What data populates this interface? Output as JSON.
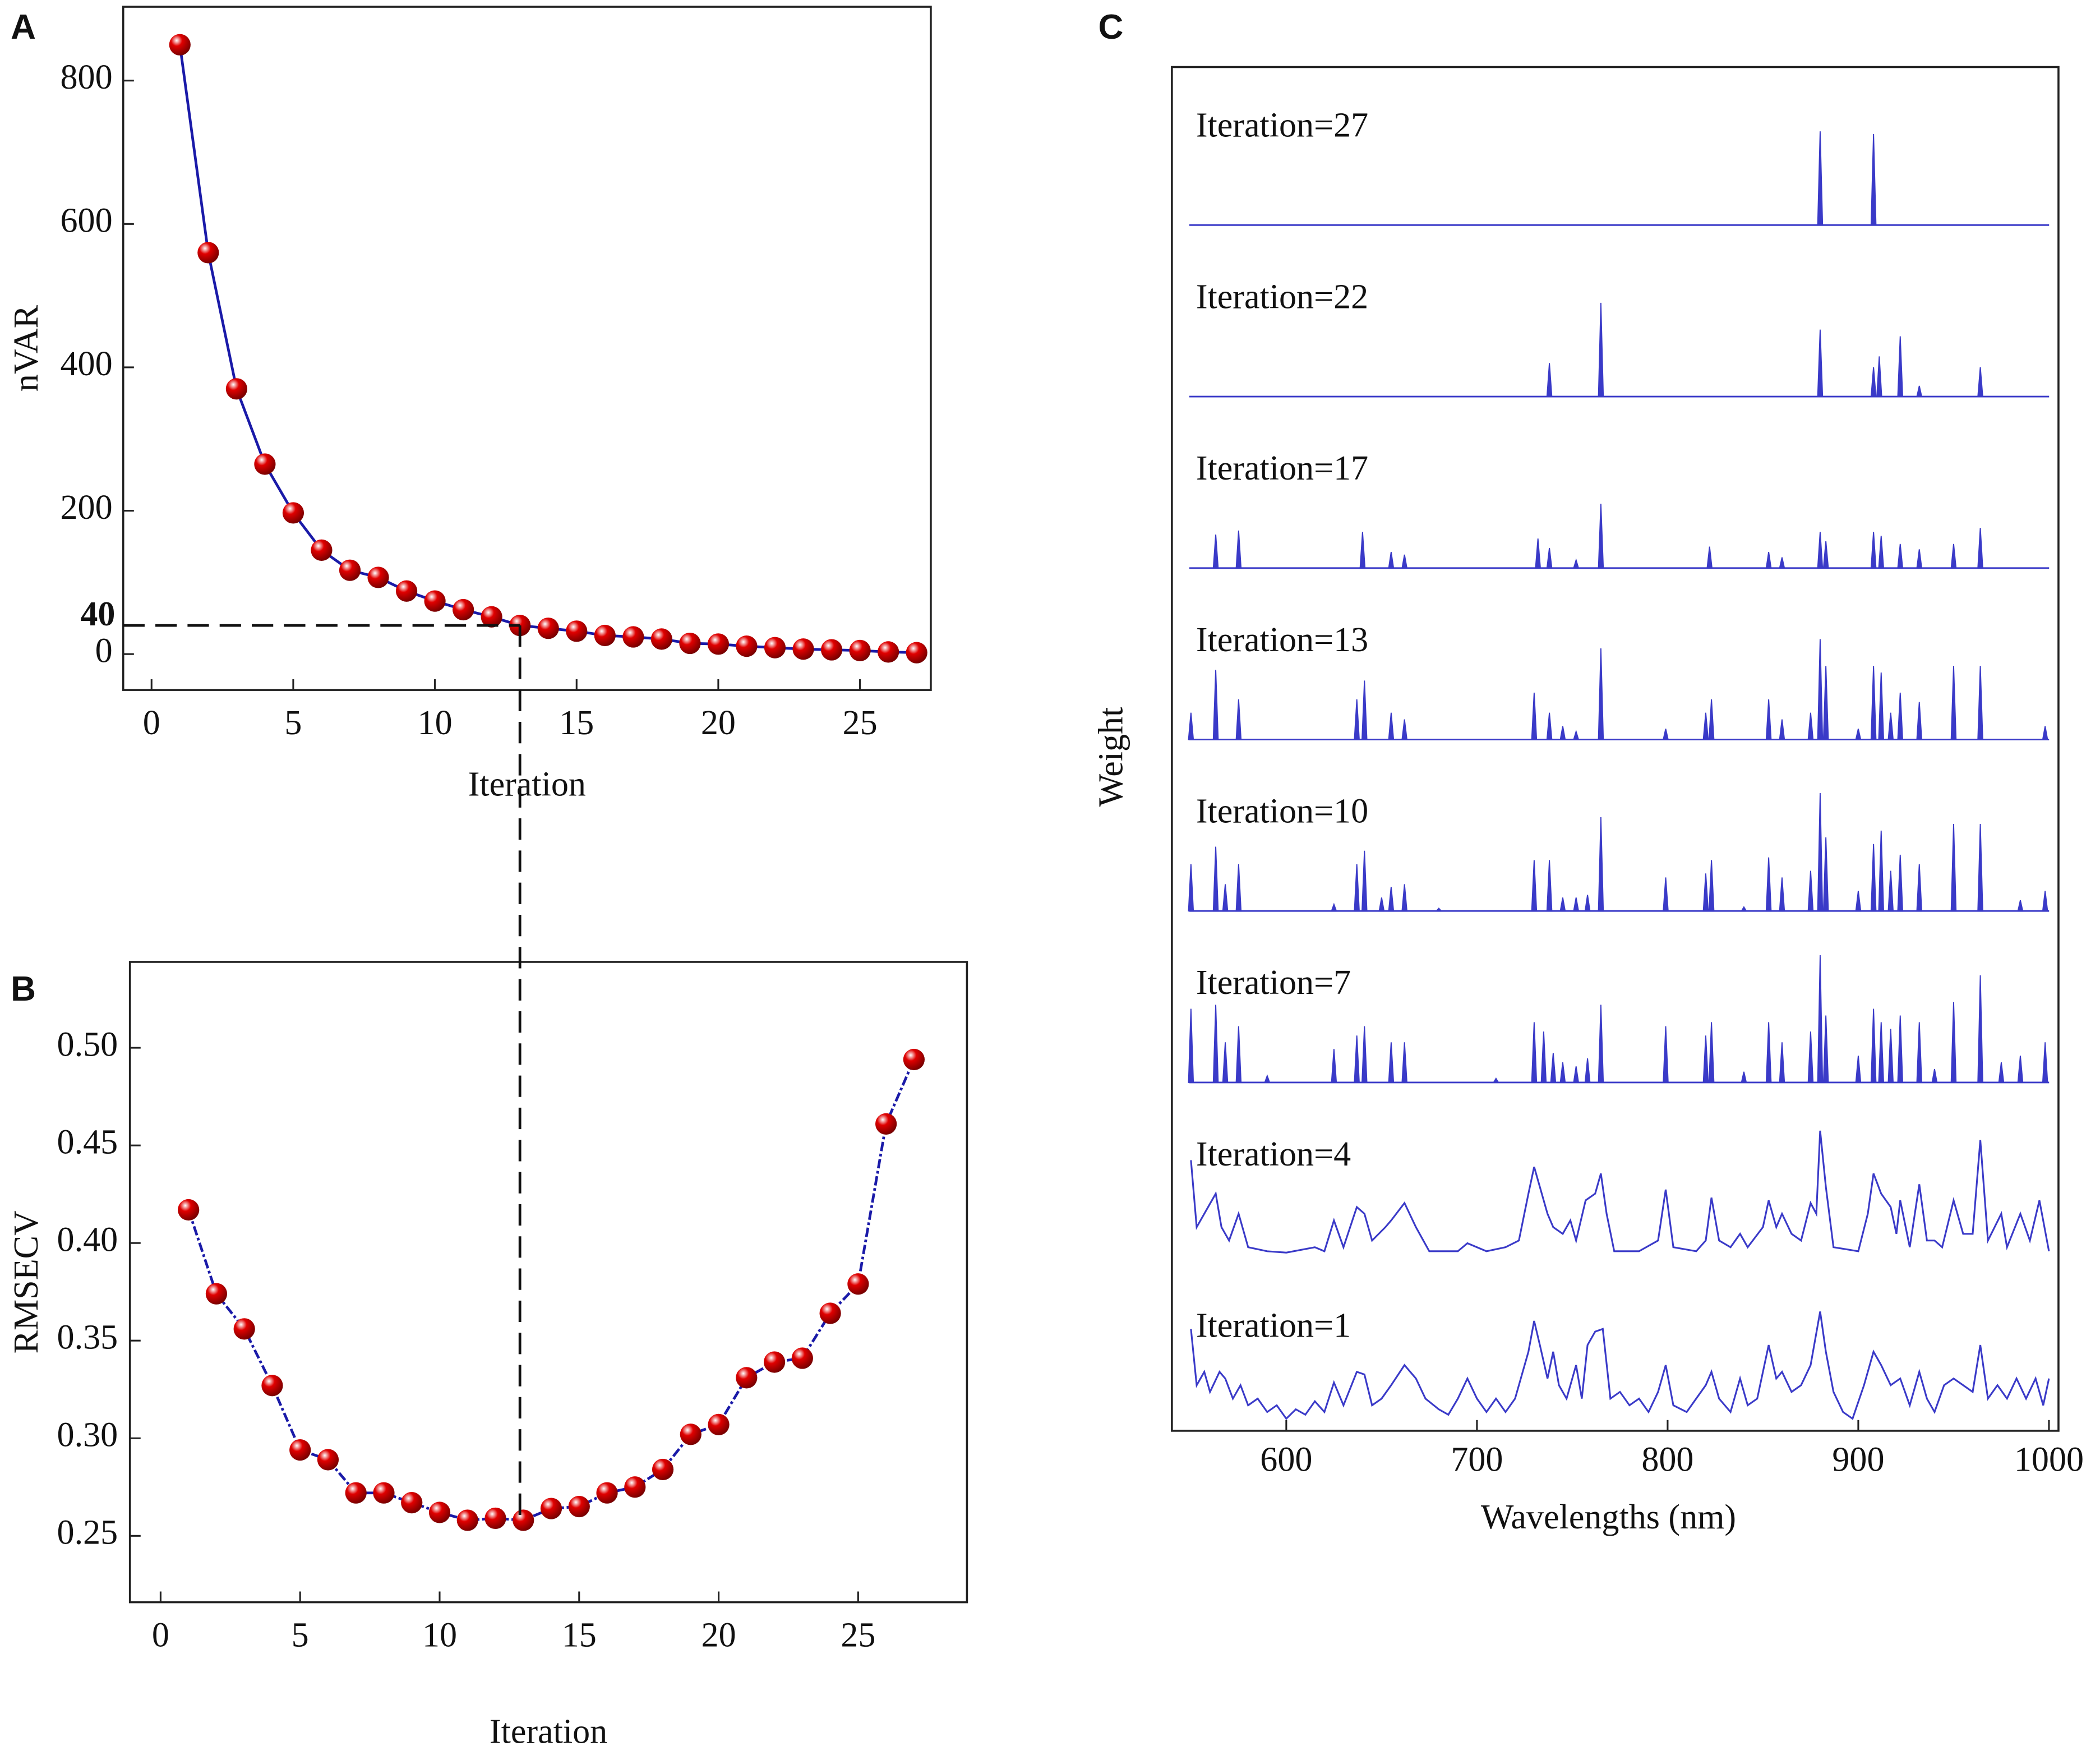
{
  "chart_data": [
    {
      "type": "line",
      "label": "A",
      "xlabel": "Iteration",
      "ylabel": "nVAR",
      "x": [
        1,
        2,
        3,
        4,
        5,
        6,
        7,
        8,
        9,
        10,
        11,
        12,
        13,
        14,
        15,
        16,
        17,
        18,
        19,
        20,
        21,
        22,
        23,
        24,
        25,
        26,
        27
      ],
      "series": [
        {
          "color": "#1a1aa8",
          "marker_color": "#e00000",
          "values": [
            850,
            560,
            370,
            265,
            197,
            145,
            117,
            107,
            88,
            74,
            62,
            52,
            40,
            36,
            32,
            26,
            24,
            21,
            15,
            14,
            11,
            9,
            7,
            6,
            5,
            3,
            2
          ]
        }
      ],
      "xlim": [
        -1,
        27.5
      ],
      "xticks": [
        0,
        5,
        10,
        15,
        20,
        25
      ],
      "ylim": [
        -50,
        903
      ],
      "yticks": [
        0,
        200,
        400,
        600,
        800
      ],
      "annotation": {
        "label": "40",
        "x": 13,
        "y": 40
      }
    },
    {
      "type": "line",
      "label": "B",
      "xlabel": "Iteration",
      "ylabel": "RMSECV",
      "x": [
        1,
        2,
        3,
        4,
        5,
        6,
        7,
        8,
        9,
        10,
        11,
        12,
        13,
        14,
        15,
        16,
        17,
        18,
        19,
        20,
        21,
        22,
        23,
        24,
        25,
        26,
        27
      ],
      "series": [
        {
          "color": "#1a1aa8",
          "marker_color": "#e00000",
          "values": [
            0.417,
            0.374,
            0.356,
            0.327,
            0.294,
            0.289,
            0.272,
            0.272,
            0.267,
            0.262,
            0.258,
            0.259,
            0.258,
            0.264,
            0.265,
            0.272,
            0.275,
            0.284,
            0.302,
            0.307,
            0.331,
            0.339,
            0.341,
            0.364,
            0.379,
            0.461,
            0.494
          ]
        }
      ],
      "xlim": [
        -1.1,
        28.9
      ],
      "xticks": [
        0,
        5,
        10,
        15,
        20,
        25
      ],
      "ylim": [
        0.216,
        0.544
      ],
      "yticks": [
        0.25,
        {
          "value": 0.3,
          "label": "0.30"
        },
        0.35,
        {
          "value": 0.4,
          "label": "0.40"
        },
        0.45,
        {
          "value": 0.5,
          "label": "0.50"
        }
      ]
    },
    {
      "type": "spectra",
      "label": "C",
      "xlabel": "Wavelengths (nm)",
      "ylabel": "Weight",
      "xlim": [
        540,
        1005
      ],
      "xticks": [
        600,
        700,
        800,
        900,
        1000
      ],
      "ylim": [
        0,
        1
      ],
      "series": [
        {
          "name": "Iteration=27",
          "style": "spikes",
          "color": "#3a3ac8",
          "x": [
            880,
            908
          ],
          "values": [
            0.7,
            0.68
          ]
        },
        {
          "name": "Iteration=22",
          "style": "spikes",
          "color": "#3a3ac8",
          "x": [
            738,
            765,
            880,
            908,
            911,
            922,
            932,
            964
          ],
          "values": [
            0.25,
            0.7,
            0.5,
            0.22,
            0.3,
            0.45,
            0.08,
            0.22
          ]
        },
        {
          "name": "Iteration=17",
          "style": "spikes",
          "color": "#3a3ac8",
          "x": [
            563,
            575,
            640,
            655,
            662,
            732,
            738,
            752,
            765,
            822,
            853,
            860,
            880,
            883,
            908,
            912,
            922,
            932,
            950,
            964
          ],
          "values": [
            0.25,
            0.28,
            0.27,
            0.12,
            0.1,
            0.22,
            0.15,
            0.06,
            0.48,
            0.16,
            0.12,
            0.08,
            0.27,
            0.2,
            0.27,
            0.24,
            0.18,
            0.14,
            0.18,
            0.3
          ]
        },
        {
          "name": "Iteration=13",
          "style": "spikes",
          "color": "#3a3ac8",
          "x": [
            550,
            563,
            575,
            637,
            641,
            655,
            662,
            730,
            738,
            745,
            752,
            765,
            799,
            820,
            823,
            853,
            860,
            875,
            880,
            883,
            900,
            908,
            912,
            917,
            922,
            932,
            950,
            964,
            998
          ],
          "values": [
            0.2,
            0.52,
            0.3,
            0.3,
            0.44,
            0.2,
            0.15,
            0.35,
            0.2,
            0.1,
            0.06,
            0.68,
            0.08,
            0.2,
            0.3,
            0.3,
            0.15,
            0.2,
            0.75,
            0.55,
            0.08,
            0.55,
            0.5,
            0.2,
            0.35,
            0.28,
            0.55,
            0.55,
            0.1
          ]
        },
        {
          "name": "Iteration=10",
          "style": "spikes",
          "color": "#3a3ac8",
          "x": [
            550,
            563,
            568,
            575,
            625,
            637,
            641,
            650,
            655,
            662,
            680,
            730,
            738,
            745,
            752,
            758,
            765,
            799,
            820,
            823,
            840,
            853,
            860,
            875,
            880,
            883,
            900,
            908,
            912,
            917,
            922,
            932,
            950,
            964,
            985,
            998
          ],
          "values": [
            0.35,
            0.48,
            0.2,
            0.35,
            0.05,
            0.35,
            0.45,
            0.1,
            0.18,
            0.2,
            0.02,
            0.38,
            0.38,
            0.1,
            0.1,
            0.12,
            0.7,
            0.25,
            0.28,
            0.38,
            0.03,
            0.4,
            0.25,
            0.3,
            0.88,
            0.55,
            0.15,
            0.5,
            0.6,
            0.3,
            0.42,
            0.35,
            0.65,
            0.65,
            0.08,
            0.15
          ]
        },
        {
          "name": "Iteration=7",
          "style": "spikes",
          "color": "#3a3ac8",
          "x": [
            550,
            563,
            568,
            575,
            590,
            625,
            637,
            641,
            655,
            662,
            710,
            730,
            735,
            740,
            745,
            752,
            758,
            765,
            799,
            820,
            823,
            840,
            853,
            860,
            875,
            880,
            883,
            900,
            908,
            912,
            917,
            922,
            932,
            940,
            950,
            964,
            975,
            985,
            998
          ],
          "values": [
            0.55,
            0.58,
            0.3,
            0.42,
            0.05,
            0.25,
            0.35,
            0.42,
            0.3,
            0.3,
            0.03,
            0.45,
            0.38,
            0.22,
            0.15,
            0.12,
            0.18,
            0.58,
            0.42,
            0.35,
            0.45,
            0.08,
            0.45,
            0.3,
            0.38,
            0.95,
            0.5,
            0.2,
            0.55,
            0.45,
            0.4,
            0.5,
            0.45,
            0.1,
            0.6,
            0.8,
            0.15,
            0.2,
            0.3
          ]
        },
        {
          "name": "Iteration=4",
          "style": "line",
          "color": "#3a3ac8",
          "x": [
            550,
            553,
            557,
            563,
            566,
            570,
            575,
            580,
            590,
            600,
            615,
            620,
            625,
            630,
            637,
            641,
            645,
            652,
            655,
            662,
            668,
            675,
            690,
            695,
            705,
            715,
            722,
            727,
            730,
            733,
            737,
            740,
            745,
            749,
            752,
            757,
            762,
            765,
            768,
            772,
            785,
            795,
            799,
            803,
            815,
            820,
            823,
            827,
            833,
            838,
            842,
            850,
            853,
            857,
            860,
            865,
            870,
            875,
            878,
            880,
            883,
            887,
            900,
            905,
            908,
            912,
            917,
            920,
            922,
            927,
            932,
            936,
            940,
            944,
            950,
            955,
            960,
            964,
            968,
            975,
            978,
            985,
            990,
            995,
            1000
          ],
          "values": [
            0.7,
            0.2,
            0.3,
            0.45,
            0.2,
            0.1,
            0.3,
            0.05,
            0.02,
            0.01,
            0.05,
            0.02,
            0.25,
            0.05,
            0.35,
            0.3,
            0.1,
            0.2,
            0.25,
            0.38,
            0.2,
            0.02,
            0.02,
            0.08,
            0.02,
            0.05,
            0.1,
            0.45,
            0.65,
            0.5,
            0.3,
            0.2,
            0.15,
            0.25,
            0.1,
            0.4,
            0.45,
            0.6,
            0.3,
            0.02,
            0.02,
            0.1,
            0.48,
            0.05,
            0.02,
            0.1,
            0.42,
            0.1,
            0.05,
            0.15,
            0.05,
            0.2,
            0.4,
            0.2,
            0.3,
            0.15,
            0.1,
            0.38,
            0.3,
            0.92,
            0.5,
            0.05,
            0.02,
            0.3,
            0.6,
            0.45,
            0.35,
            0.15,
            0.4,
            0.05,
            0.52,
            0.1,
            0.1,
            0.05,
            0.4,
            0.15,
            0.15,
            0.85,
            0.1,
            0.3,
            0.05,
            0.3,
            0.1,
            0.4,
            0.02
          ]
        },
        {
          "name": "Iteration=1",
          "style": "line",
          "color": "#3a3ac8",
          "x": [
            550,
            553,
            557,
            560,
            565,
            568,
            572,
            576,
            580,
            585,
            590,
            595,
            600,
            605,
            610,
            615,
            620,
            625,
            630,
            637,
            641,
            645,
            650,
            655,
            662,
            668,
            673,
            680,
            685,
            690,
            695,
            700,
            705,
            710,
            715,
            720,
            723,
            727,
            730,
            733,
            737,
            740,
            743,
            747,
            752,
            755,
            758,
            762,
            766,
            770,
            775,
            780,
            785,
            790,
            795,
            799,
            803,
            810,
            815,
            820,
            823,
            827,
            833,
            838,
            842,
            847,
            853,
            857,
            860,
            865,
            870,
            875,
            880,
            883,
            887,
            892,
            897,
            903,
            908,
            912,
            917,
            922,
            927,
            932,
            936,
            940,
            945,
            950,
            955,
            960,
            964,
            968,
            973,
            978,
            983,
            988,
            993,
            997,
            1000
          ],
          "values": [
            0.72,
            0.3,
            0.4,
            0.25,
            0.4,
            0.35,
            0.2,
            0.3,
            0.15,
            0.2,
            0.1,
            0.15,
            0.05,
            0.12,
            0.08,
            0.18,
            0.1,
            0.32,
            0.15,
            0.4,
            0.38,
            0.15,
            0.2,
            0.3,
            0.45,
            0.35,
            0.2,
            0.12,
            0.08,
            0.2,
            0.35,
            0.2,
            0.1,
            0.2,
            0.1,
            0.2,
            0.35,
            0.55,
            0.78,
            0.6,
            0.35,
            0.55,
            0.3,
            0.2,
            0.45,
            0.2,
            0.6,
            0.7,
            0.72,
            0.2,
            0.25,
            0.15,
            0.2,
            0.1,
            0.25,
            0.45,
            0.15,
            0.1,
            0.2,
            0.3,
            0.4,
            0.2,
            0.1,
            0.35,
            0.15,
            0.2,
            0.6,
            0.35,
            0.4,
            0.25,
            0.3,
            0.45,
            0.85,
            0.55,
            0.25,
            0.1,
            0.05,
            0.3,
            0.55,
            0.45,
            0.3,
            0.35,
            0.15,
            0.4,
            0.2,
            0.1,
            0.3,
            0.35,
            0.3,
            0.25,
            0.6,
            0.2,
            0.3,
            0.2,
            0.35,
            0.2,
            0.35,
            0.15,
            0.35
          ]
        }
      ]
    }
  ]
}
